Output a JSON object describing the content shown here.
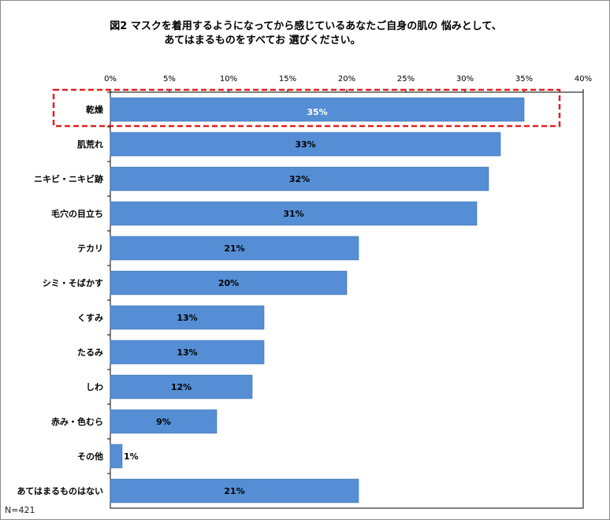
{
  "title_line1": "図2 マスクを着用するようになってから感じているあなたご自身の肌の 悩みとして、",
  "title_line2": "あてはまるものをすべてお 選びください。",
  "sample_note": "N=421",
  "colors": {
    "bar": "#558ed5",
    "bar_stroke": "#3a6fb0",
    "highlight": "#e02020",
    "axis": "#000000"
  },
  "chart_data": {
    "type": "bar",
    "orientation": "horizontal",
    "categories": [
      "乾燥",
      "肌荒れ",
      "ニキビ・ニキビ跡",
      "毛穴の目立ち",
      "テカリ",
      "シミ・そばかす",
      "くすみ",
      "たるみ",
      "しわ",
      "赤み・色むら",
      "その他",
      "あてはまるものはない"
    ],
    "values": [
      35,
      33,
      32,
      31,
      21,
      20,
      13,
      13,
      12,
      9,
      1,
      21
    ],
    "value_labels": [
      "35%",
      "33%",
      "32%",
      "31%",
      "21%",
      "20%",
      "13%",
      "13%",
      "12%",
      "9%",
      "1%",
      "21%"
    ],
    "xlim": [
      0,
      40
    ],
    "xticks": [
      "0%",
      "5%",
      "10%",
      "15%",
      "20%",
      "25%",
      "30%",
      "35%",
      "40%"
    ],
    "highlighted_category": "乾燥",
    "grid": false,
    "legend": "none"
  }
}
